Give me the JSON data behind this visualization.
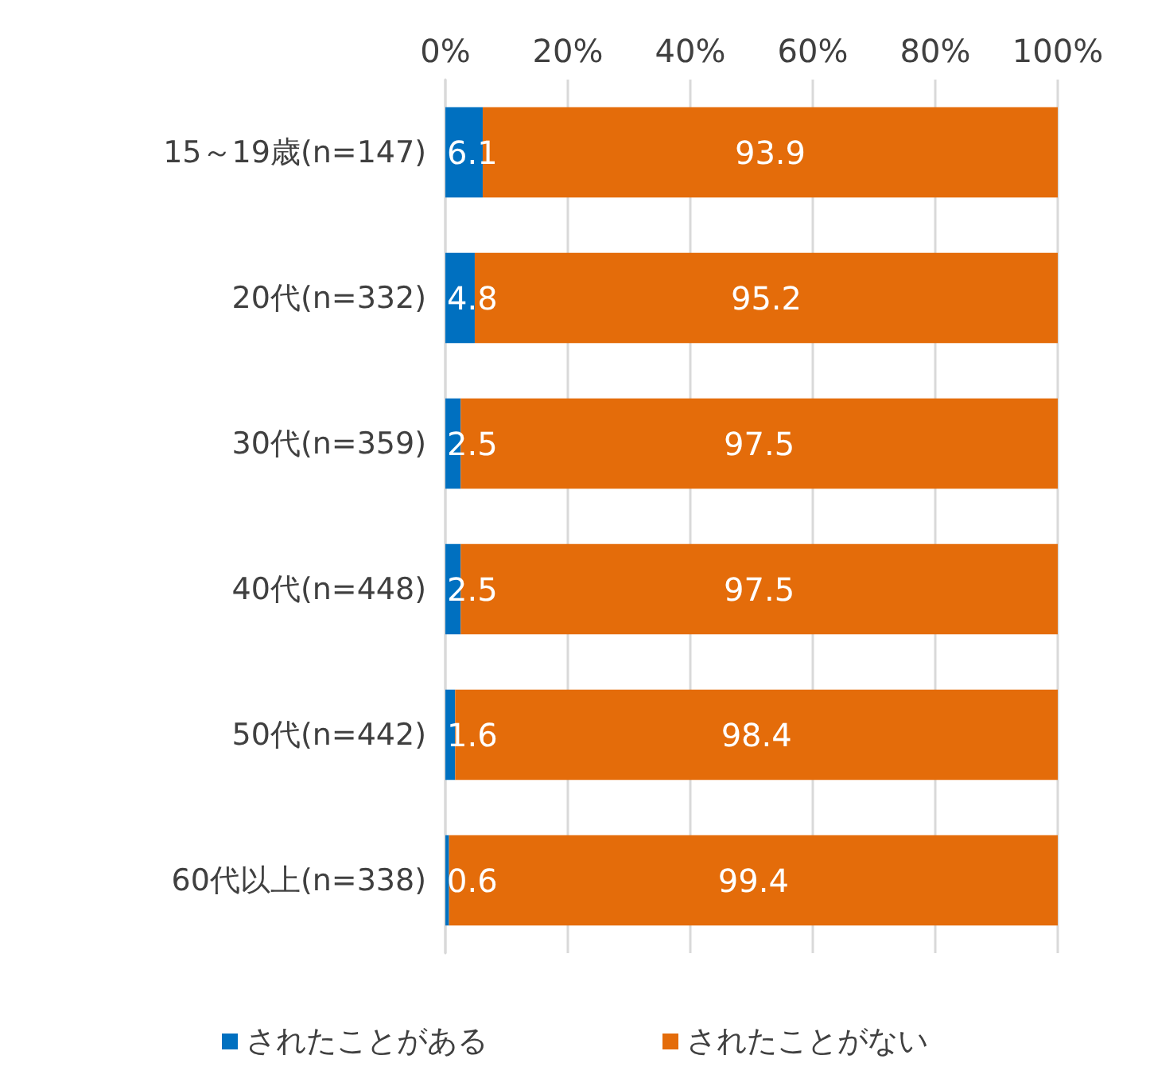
{
  "chart_data": {
    "type": "bar",
    "orientation": "horizontal",
    "stacked": true,
    "categories": [
      "15～19歳(n=147)",
      "20代(n=332)",
      "30代(n=359)",
      "40代(n=448)",
      "50代(n=442)",
      "60代以上(n=338)"
    ],
    "series": [
      {
        "name": "されたことがある",
        "color": "#0070c0",
        "values": [
          6.1,
          4.8,
          2.5,
          2.5,
          1.6,
          0.6
        ]
      },
      {
        "name": "されたことがない",
        "color": "#e46c0a",
        "values": [
          93.9,
          95.2,
          97.5,
          97.5,
          98.4,
          99.4
        ]
      }
    ],
    "xlim": [
      0,
      100
    ],
    "xticks": [
      {
        "value": 0,
        "label": "0%"
      },
      {
        "value": 20,
        "label": "20%"
      },
      {
        "value": 40,
        "label": "40%"
      },
      {
        "value": 60,
        "label": "60%"
      },
      {
        "value": 80,
        "label": "80%"
      },
      {
        "value": 100,
        "label": "100%"
      }
    ],
    "data_labels": true,
    "grid": "x",
    "legend": "bottom"
  }
}
